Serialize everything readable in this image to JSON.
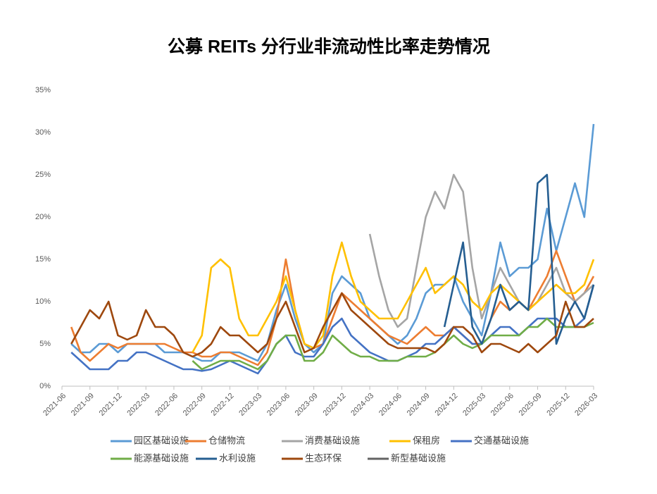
{
  "chart_data": {
    "type": "line",
    "title": "公募 REITs 分行业非流动性比率走势情况",
    "x": [
      "2021-07",
      "2021-08",
      "2021-09",
      "2021-10",
      "2021-11",
      "2021-12",
      "2022-01",
      "2022-02",
      "2022-03",
      "2022-04",
      "2022-05",
      "2022-06",
      "2022-07",
      "2022-08",
      "2022-09",
      "2022-10",
      "2022-11",
      "2022-12",
      "2023-01",
      "2023-02",
      "2023-03",
      "2023-04",
      "2023-05",
      "2023-06",
      "2023-07",
      "2023-08",
      "2023-09",
      "2023-10",
      "2023-11",
      "2023-12",
      "2024-01",
      "2024-02",
      "2024-03",
      "2024-04",
      "2024-05",
      "2024-06",
      "2024-07",
      "2024-08",
      "2024-09",
      "2024-10",
      "2024-11",
      "2024-12",
      "2025-01",
      "2025-02",
      "2025-03",
      "2025-04",
      "2025-05",
      "2025-06",
      "2025-07",
      "2025-08",
      "2025-09",
      "2025-10",
      "2025-11",
      "2025-12",
      "2026-01",
      "2026-02",
      "2026-03"
    ],
    "xticks": [
      "2021-06",
      "2021-09",
      "2021-12",
      "2022-03",
      "2022-06",
      "2022-09",
      "2022-12",
      "2023-03",
      "2023-06",
      "2023-09",
      "2023-12",
      "2024-03",
      "2024-06",
      "2024-09",
      "2024-12",
      "2025-03",
      "2025-06",
      "2025-09",
      "2025-12",
      "2026-03"
    ],
    "ylim": [
      0,
      35
    ],
    "yticks": [
      {
        "value": 0,
        "label": "0%"
      },
      {
        "value": 5,
        "label": "5%"
      },
      {
        "value": 10,
        "label": "10%"
      },
      {
        "value": 15,
        "label": "15%"
      },
      {
        "value": 20,
        "label": "20%"
      },
      {
        "value": 25,
        "label": "25%"
      },
      {
        "value": 30,
        "label": "30%"
      },
      {
        "value": 35,
        "label": "35%"
      }
    ],
    "grid": false,
    "legend": "bottom",
    "series": [
      {
        "name": "园区基础设施",
        "color": "#5b9bd5",
        "values": [
          5,
          4,
          4,
          5,
          5,
          4,
          5,
          5,
          5,
          5,
          4,
          4,
          4,
          3.5,
          3,
          3,
          4,
          4,
          4,
          3.5,
          3,
          5,
          9,
          12,
          8,
          5,
          4,
          5,
          11,
          13,
          12,
          11,
          8,
          7,
          6,
          5,
          6,
          8,
          11,
          12,
          12,
          13,
          10,
          8,
          6,
          11,
          17,
          13,
          14,
          14,
          15,
          21,
          16,
          20,
          24,
          20,
          31
        ]
      },
      {
        "name": "仓储物流",
        "color": "#ed7d31",
        "values": [
          7,
          4,
          3,
          4,
          5,
          4.5,
          5,
          5,
          5,
          5,
          5,
          4.5,
          4,
          4,
          3.5,
          3.5,
          4,
          4,
          3.5,
          3,
          2.5,
          4,
          8,
          15,
          9,
          5,
          4.5,
          5,
          8,
          11,
          10,
          9,
          8,
          7,
          6,
          5.5,
          5,
          6,
          7,
          6,
          6,
          7,
          6,
          5,
          5,
          8,
          10,
          9,
          10,
          9,
          11,
          13,
          16,
          13,
          10,
          11,
          13
        ]
      },
      {
        "name": "消费基础设施",
        "color": "#a5a5a5",
        "values": [
          null,
          null,
          null,
          null,
          null,
          null,
          null,
          null,
          null,
          null,
          null,
          null,
          null,
          null,
          null,
          null,
          null,
          null,
          null,
          null,
          null,
          null,
          null,
          null,
          null,
          null,
          null,
          null,
          null,
          null,
          null,
          null,
          18,
          13,
          9,
          7,
          8,
          14,
          20,
          23,
          21,
          25,
          23,
          14,
          8,
          11,
          14,
          12,
          10,
          9,
          10,
          12,
          14,
          11,
          10,
          11,
          12
        ]
      },
      {
        "name": "保租房",
        "color": "#ffc000",
        "values": [
          null,
          null,
          null,
          null,
          null,
          null,
          null,
          null,
          null,
          null,
          null,
          null,
          null,
          4,
          6,
          14,
          15,
          14,
          8,
          6,
          6,
          8,
          10,
          13,
          9,
          5,
          4.5,
          6,
          13,
          17,
          13,
          10,
          9,
          8,
          8,
          8,
          10,
          12,
          14,
          11,
          12,
          13,
          12,
          10,
          9,
          11,
          12,
          11,
          10,
          9,
          10,
          11,
          12,
          11,
          11,
          12,
          15
        ]
      },
      {
        "name": "交通基础设施",
        "color": "#4472c4",
        "values": [
          4,
          3,
          2,
          2,
          2,
          3,
          3,
          4,
          4,
          3.5,
          3,
          2.5,
          2,
          2,
          1.8,
          2,
          2.5,
          3,
          2.5,
          2,
          1.5,
          3,
          5,
          6,
          4,
          3.5,
          3.5,
          5,
          7,
          8,
          6,
          5,
          4,
          3.5,
          3,
          3,
          3.5,
          4,
          5,
          5,
          6,
          7,
          6,
          5,
          5,
          6,
          7,
          7,
          6,
          7,
          8,
          8,
          8,
          7,
          7,
          8,
          12
        ]
      },
      {
        "name": "能源基础设施",
        "color": "#70ad47",
        "values": [
          null,
          null,
          null,
          null,
          null,
          null,
          null,
          null,
          null,
          null,
          null,
          null,
          null,
          3,
          2,
          2.5,
          3,
          3,
          3,
          2.5,
          2,
          3,
          5,
          6,
          6,
          3,
          3,
          4,
          6,
          5,
          4,
          3.5,
          3.5,
          3,
          3,
          3,
          3.5,
          3.5,
          3.5,
          4,
          5,
          6,
          5,
          4.5,
          5,
          6,
          6,
          6,
          6,
          7,
          7,
          8,
          7,
          7,
          7,
          7,
          7.5
        ]
      },
      {
        "name": "水利设施",
        "color": "#255e91",
        "values": [
          null,
          null,
          null,
          null,
          null,
          null,
          null,
          null,
          null,
          null,
          null,
          null,
          null,
          null,
          null,
          null,
          null,
          null,
          null,
          null,
          null,
          null,
          null,
          null,
          null,
          null,
          null,
          null,
          null,
          null,
          null,
          null,
          null,
          null,
          null,
          null,
          null,
          null,
          null,
          null,
          7,
          12,
          17,
          7,
          5,
          8,
          12,
          9,
          10,
          9,
          24,
          25,
          5,
          8,
          10,
          8,
          12
        ]
      },
      {
        "name": "生态环保",
        "color": "#9e480e",
        "values": [
          5,
          7,
          9,
          8,
          10,
          6,
          5.5,
          6,
          9,
          7,
          7,
          6,
          4,
          3.5,
          4,
          5,
          7,
          6,
          6,
          5,
          4,
          5,
          8,
          10,
          7,
          4,
          4.5,
          7,
          9,
          11,
          9,
          8,
          7,
          6,
          5,
          4.5,
          4.5,
          4.5,
          4.5,
          4,
          5,
          7,
          7,
          6,
          4,
          5,
          5,
          4.5,
          4,
          5,
          4,
          5,
          6,
          10,
          7,
          7,
          8
        ]
      },
      {
        "name": "新型基础设施",
        "color": "#636363",
        "values": [
          null,
          null,
          null,
          null,
          null,
          null,
          null,
          null,
          null,
          null,
          null,
          null,
          null,
          null,
          null,
          null,
          null,
          null,
          null,
          null,
          null,
          null,
          null,
          null,
          null,
          null,
          null,
          null,
          null,
          null,
          null,
          null,
          null,
          null,
          null,
          null,
          null,
          null,
          null,
          null,
          null,
          null,
          null,
          null,
          null,
          null,
          null,
          null,
          null,
          null,
          null,
          null,
          null,
          null,
          null,
          null,
          null
        ]
      }
    ]
  }
}
